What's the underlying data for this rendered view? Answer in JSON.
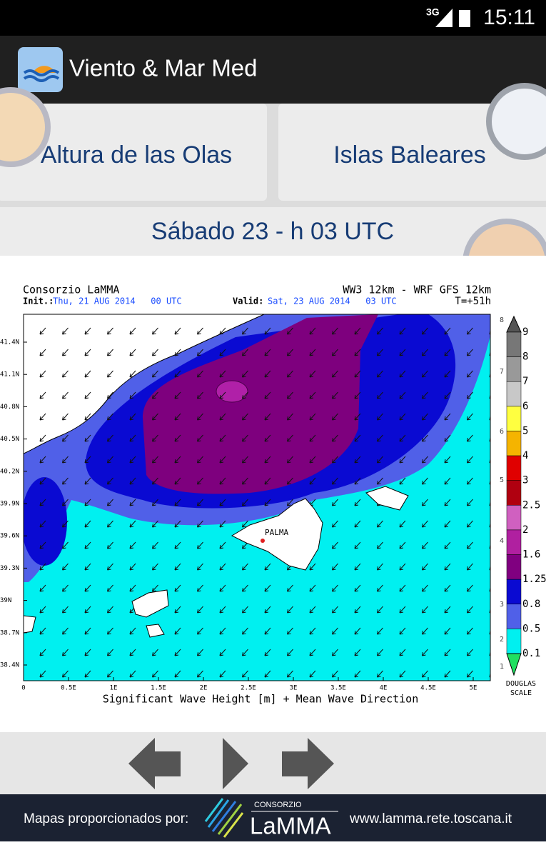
{
  "status_bar": {
    "network": "3G",
    "time": "15:11"
  },
  "app_bar": {
    "title": "Viento & Mar Med"
  },
  "buttons": [
    "Altura de las Olas",
    "Islas Baleares"
  ],
  "date": "Sábado 23 - h 03 UTC",
  "map": {
    "source": "Consorzio LaMMA",
    "model": "WW3 12km - WRF GFS 12km",
    "init_label": "Init.:",
    "init": "Thu, 21 AUG 2014   00 UTC",
    "valid_label": "Valid:",
    "valid": "Sat, 23 AUG 2014   03 UTC",
    "lead": "T=+51h",
    "lat_labels": [
      "41.4N",
      "41.1N",
      "40.8N",
      "40.5N",
      "40.2N",
      "39.9N",
      "39.6N",
      "39.3N",
      "39N",
      "38.7N",
      "38.4N"
    ],
    "lon_labels": [
      "0",
      "0.5E",
      "1E",
      "1.5E",
      "2E",
      "2.5E",
      "3E",
      "3.5E",
      "4E",
      "4.5E",
      "5E"
    ],
    "caption": "Significant Wave Height [m] + Mean Wave Direction",
    "place": "PALMA",
    "scale_labels": [
      "9",
      "8",
      "7",
      "6",
      "5",
      "4",
      "3",
      "2.5",
      "2",
      "1.6",
      "1.25",
      "0.8",
      "0.5",
      "0.1"
    ],
    "douglas_labels": [
      "8",
      "7",
      "6",
      "5",
      "4",
      "3",
      "2",
      "1"
    ],
    "douglas_title": [
      "DOUGLAS",
      "SCALE"
    ]
  },
  "footer": {
    "credit": "Mapas proporcionados por:",
    "logo_small": "CONSORZIO",
    "logo": "LaMMA",
    "url": "www.lamma.rete.toscana.it"
  }
}
